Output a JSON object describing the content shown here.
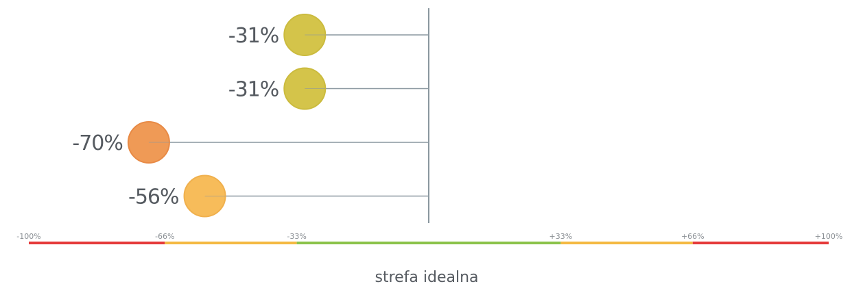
{
  "chart_data": {
    "type": "scatter",
    "title": "",
    "xlim": [
      -100,
      100
    ],
    "center": 0,
    "values": [
      -31,
      -31,
      -70,
      -56
    ],
    "value_labels": [
      "-31%",
      "-31%",
      "-70%",
      "-56%"
    ],
    "point_colors": [
      "#d4c44a",
      "#d4c44a",
      "#ef9a56",
      "#f7bc5a"
    ],
    "point_border_colors": [
      "#cbbb3e",
      "#cbbb3e",
      "#e88a45",
      "#f0b04d"
    ],
    "axis": {
      "ticks": [
        -100,
        -66,
        -33,
        33,
        66,
        100
      ],
      "tick_labels": [
        "-100%",
        "-66%",
        "-33%",
        "+33%",
        "+66%",
        "+100%"
      ],
      "zones": [
        {
          "from": -100,
          "to": -66,
          "color": "#e53a3a"
        },
        {
          "from": -66,
          "to": -33,
          "color": "#f4b942"
        },
        {
          "from": -33,
          "to": 33,
          "color": "#8bc34a"
        },
        {
          "from": 33,
          "to": 66,
          "color": "#f4b942"
        },
        {
          "from": 66,
          "to": 100,
          "color": "#e53a3a"
        }
      ],
      "caption": "strefa idealna"
    },
    "line_color": "#8a979f",
    "grid": false
  }
}
